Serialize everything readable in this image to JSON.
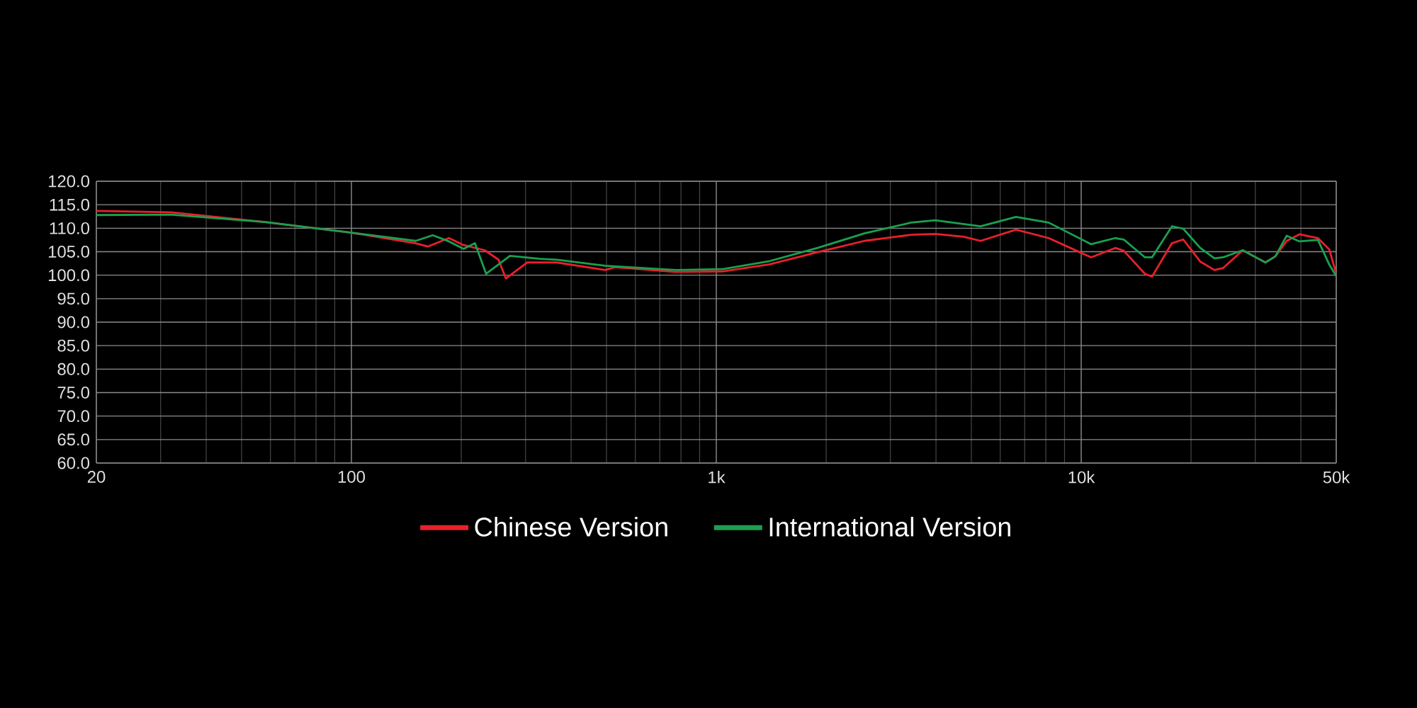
{
  "chart_data": {
    "type": "line",
    "log": "x",
    "grid": true,
    "legend": "bottom",
    "line_style": "solid",
    "marker": "none",
    "xlim": [
      20,
      50000
    ],
    "xticks": [
      20,
      100,
      {
        "value": 1000,
        "label": "1k"
      },
      {
        "value": 10000,
        "label": "10k"
      },
      {
        "value": 50000,
        "label": "50k"
      }
    ],
    "ylim": [
      60,
      120
    ],
    "yticks": [
      {
        "value": 60,
        "label": "60.0"
      },
      {
        "value": 65,
        "label": "65.0"
      },
      {
        "value": 70,
        "label": "70.0"
      },
      {
        "value": 75,
        "label": "75.0"
      },
      {
        "value": 80,
        "label": "80.0"
      },
      {
        "value": 85,
        "label": "85.0"
      },
      {
        "value": 90,
        "label": "90.0"
      },
      {
        "value": 95,
        "label": "95.0"
      },
      {
        "value": 100,
        "label": "100.0"
      },
      {
        "value": 105,
        "label": "105.0"
      },
      {
        "value": 110,
        "label": "110.0"
      },
      {
        "value": 115,
        "label": "115.0"
      },
      {
        "value": 120,
        "label": "120.0"
      }
    ],
    "series": [
      {
        "name": "Chinese Version",
        "color": "#e8202a",
        "x": [
          20,
          32,
          58,
          99,
          150,
          162,
          185,
          203,
          232,
          253,
          265,
          303,
          366,
          496,
          528,
          775,
          1041,
          1399,
          1896,
          2546,
          3420,
          3982,
          4762,
          5300,
          6628,
          8142,
          10646,
          12396,
          13078,
          14952,
          15640,
          17726,
          19038,
          21196,
          23180,
          24460,
          27720,
          31980,
          34040,
          36580,
          39640,
          44540,
          47820,
          50000
        ],
        "values": [
          113.7,
          113.4,
          111.3,
          109.1,
          106.8,
          106.1,
          107.9,
          106.4,
          105.3,
          103.3,
          99.3,
          102.7,
          102.7,
          101.1,
          101.7,
          100.7,
          100.8,
          102.3,
          104.9,
          107.3,
          108.6,
          108.8,
          108.2,
          107.3,
          109.7,
          107.9,
          103.8,
          105.8,
          105.2,
          100.3,
          99.7,
          106.8,
          107.6,
          102.9,
          101.1,
          101.5,
          105.3,
          102.7,
          104.0,
          107.3,
          108.7,
          107.9,
          105.5,
          100.3
        ]
      },
      {
        "name": "International Version",
        "color": "#1aa050",
        "x": [
          20,
          32,
          58,
          99,
          150,
          167,
          185,
          203,
          218,
          234,
          272,
          326,
          366,
          496,
          775,
          1041,
          1399,
          1896,
          2546,
          3420,
          3982,
          5300,
          6628,
          8142,
          10646,
          12396,
          13078,
          14952,
          15640,
          17726,
          19038,
          21196,
          23180,
          24460,
          27720,
          31980,
          34040,
          36580,
          39640,
          44540,
          47820,
          50000
        ],
        "values": [
          112.8,
          112.9,
          111.3,
          109.1,
          107.3,
          108.5,
          107.2,
          105.6,
          106.8,
          100.3,
          104.1,
          103.5,
          103.3,
          102.0,
          101.1,
          101.3,
          103.0,
          105.8,
          108.9,
          111.2,
          111.7,
          110.4,
          112.4,
          111.2,
          106.6,
          107.9,
          107.6,
          103.8,
          103.8,
          110.4,
          109.9,
          105.8,
          103.6,
          103.8,
          105.3,
          102.7,
          104.0,
          108.4,
          107.2,
          107.5,
          102.3,
          99.8
        ]
      }
    ]
  }
}
